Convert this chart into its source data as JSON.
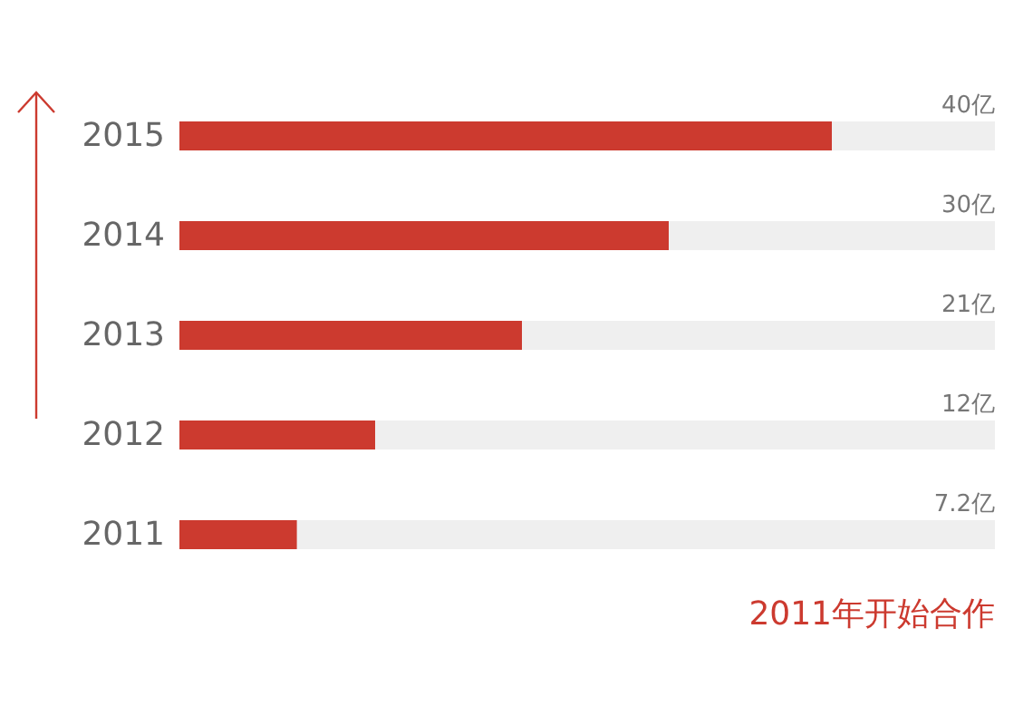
{
  "chart_data": {
    "type": "bar",
    "orientation": "horizontal",
    "categories": [
      "2015",
      "2014",
      "2013",
      "2012",
      "2011"
    ],
    "values": [
      40,
      30,
      21,
      12,
      7.2
    ],
    "value_labels": [
      "40亿",
      "30亿",
      "21亿",
      "12亿",
      "7.2亿"
    ],
    "color": "#cc3a2f",
    "xlim": [
      0,
      50
    ],
    "tick_labels": "y",
    "annotations": [
      "2011年开始合作"
    ]
  }
}
